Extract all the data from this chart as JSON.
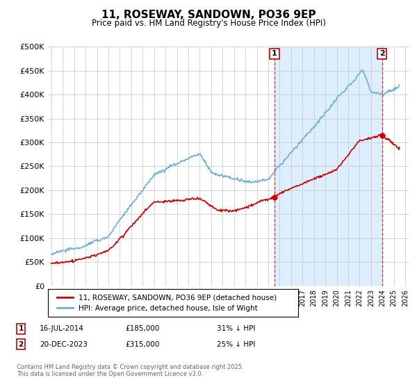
{
  "title": "11, ROSEWAY, SANDOWN, PO36 9EP",
  "subtitle": "Price paid vs. HM Land Registry's House Price Index (HPI)",
  "ylim": [
    0,
    500000
  ],
  "yticks": [
    0,
    50000,
    100000,
    150000,
    200000,
    250000,
    300000,
    350000,
    400000,
    450000,
    500000
  ],
  "xlim_start": 1994.7,
  "xlim_end": 2026.3,
  "hpi_color": "#6baed6",
  "price_color": "#cc0000",
  "shade_color": "#ddeeff",
  "legend_labels": [
    "11, ROSEWAY, SANDOWN, PO36 9EP (detached house)",
    "HPI: Average price, detached house, Isle of Wight"
  ],
  "annotation1": {
    "label": "1",
    "date_str": "16-JUL-2014",
    "price": 185000,
    "price_str": "£185,000",
    "pct": "31% ↓ HPI",
    "year": 2014.54
  },
  "annotation2": {
    "label": "2",
    "date_str": "20-DEC-2023",
    "price": 315000,
    "price_str": "£315,000",
    "pct": "25% ↓ HPI",
    "year": 2023.97
  },
  "footer_line1": "Contains HM Land Registry data © Crown copyright and database right 2025.",
  "footer_line2": "This data is licensed under the Open Government Licence v3.0.",
  "background_color": "#ffffff",
  "grid_color": "#cccccc"
}
